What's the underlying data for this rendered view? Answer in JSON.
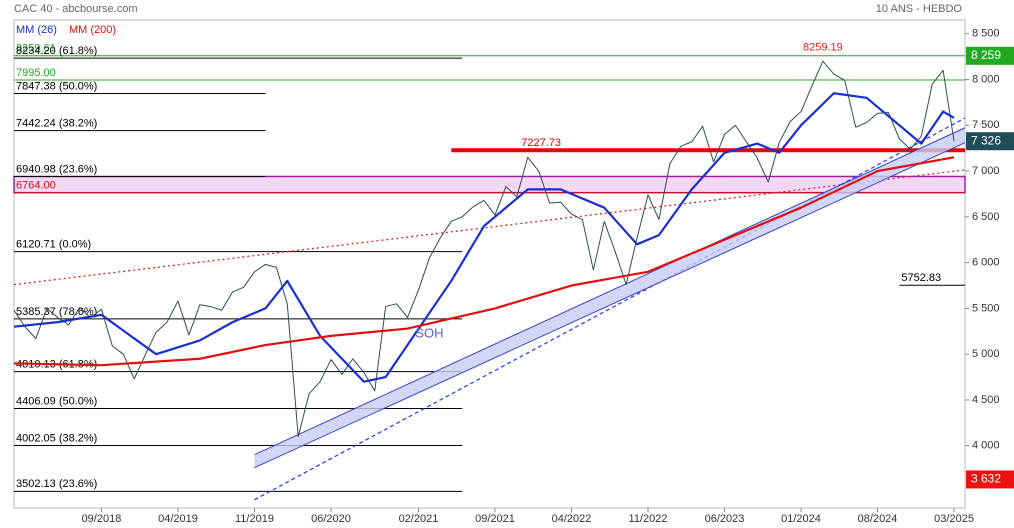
{
  "chart_data": {
    "type": "line",
    "title": "CAC 40 - abcbourse.com",
    "subtitle": "10 ANS - HEBDO",
    "xlim": [
      "2018-01",
      "2025-04"
    ],
    "xticks": [
      {
        "value": "2018-09",
        "label": "09/2018"
      },
      {
        "value": "2019-04",
        "label": "04/2019"
      },
      {
        "value": "2019-11",
        "label": "11/2019"
      },
      {
        "value": "2020-06",
        "label": "06/2020"
      },
      {
        "value": "2021-02",
        "label": "02/2021"
      },
      {
        "value": "2021-09",
        "label": "09/2021"
      },
      {
        "value": "2022-04",
        "label": "04/2022"
      },
      {
        "value": "2022-11",
        "label": "11/2022"
      },
      {
        "value": "2023-06",
        "label": "06/2023"
      },
      {
        "value": "2024-01",
        "label": "01/2024"
      },
      {
        "value": "2024-08",
        "label": "08/2024"
      },
      {
        "value": "2025-03",
        "label": "03/2025"
      }
    ],
    "ylim": [
      3320,
      8650
    ],
    "yticks": [
      {
        "value": 4000,
        "label": "4 000"
      },
      {
        "value": 4500,
        "label": "4 500"
      },
      {
        "value": 5000,
        "label": "5 000"
      },
      {
        "value": 5500,
        "label": "5 500"
      },
      {
        "value": 6000,
        "label": "6 000"
      },
      {
        "value": 6500,
        "label": "6 500"
      },
      {
        "value": 7000,
        "label": "7 000"
      },
      {
        "value": 7500,
        "label": "7 500"
      },
      {
        "value": 8000,
        "label": "8 000"
      },
      {
        "value": 8500,
        "label": "8 500"
      }
    ],
    "series": [
      {
        "color": "#2f4f4f",
        "x": [
          "2018-01",
          "2018-02",
          "2018-03",
          "2018-04",
          "2018-05",
          "2018-06",
          "2018-07",
          "2018-08",
          "2018-09",
          "2018-10",
          "2018-11",
          "2018-12",
          "2019-01",
          "2019-02",
          "2019-03",
          "2019-04",
          "2019-05",
          "2019-06",
          "2019-07",
          "2019-08",
          "2019-09",
          "2019-10",
          "2019-11",
          "2019-12",
          "2020-01",
          "2020-02",
          "2020-03",
          "2020-04",
          "2020-05",
          "2020-06",
          "2020-07",
          "2020-08",
          "2020-09",
          "2020-10",
          "2020-11",
          "2020-12",
          "2021-01",
          "2021-02",
          "2021-03",
          "2021-04",
          "2021-05",
          "2021-06",
          "2021-07",
          "2021-08",
          "2021-09",
          "2021-10",
          "2021-11",
          "2021-12",
          "2022-01",
          "2022-02",
          "2022-03",
          "2022-04",
          "2022-05",
          "2022-06",
          "2022-07",
          "2022-08",
          "2022-09",
          "2022-10",
          "2022-11",
          "2022-12",
          "2023-01",
          "2023-02",
          "2023-03",
          "2023-04",
          "2023-05",
          "2023-06",
          "2023-07",
          "2023-08",
          "2023-09",
          "2023-10",
          "2023-11",
          "2023-12",
          "2024-01",
          "2024-02",
          "2024-03",
          "2024-04",
          "2024-05",
          "2024-06",
          "2024-07",
          "2024-08",
          "2024-09",
          "2024-10",
          "2024-11",
          "2024-12",
          "2025-01",
          "2025-02",
          "2025-03"
        ],
        "values": [
          5480,
          5300,
          5170,
          5500,
          5400,
          5320,
          5510,
          5400,
          5490,
          5090,
          5000,
          4730,
          4990,
          5240,
          5350,
          5580,
          5210,
          5540,
          5520,
          5480,
          5680,
          5730,
          5900,
          5980,
          5950,
          5550,
          4100,
          4570,
          4700,
          4940,
          4780,
          4950,
          4800,
          4600,
          5520,
          5550,
          5400,
          5700,
          6050,
          6270,
          6450,
          6500,
          6610,
          6680,
          6520,
          6830,
          6720,
          7150,
          7000,
          6650,
          6660,
          6530,
          6470,
          5920,
          6450,
          6120,
          5760,
          6270,
          6740,
          6470,
          7080,
          7270,
          7320,
          7490,
          7100,
          7400,
          7500,
          7320,
          7140,
          6880,
          7310,
          7540,
          7650,
          7930,
          8200,
          8060,
          7990,
          7480,
          7530,
          7630,
          7640,
          7350,
          7240,
          7380,
          7950,
          8100,
          7326
        ]
      },
      {
        "name": "MM (26)",
        "color": "#1a2fd0",
        "x": [
          "2018-01",
          "2018-05",
          "2018-09",
          "2019-02",
          "2019-06",
          "2019-09",
          "2019-12",
          "2020-02",
          "2020-05",
          "2020-09",
          "2020-11",
          "2021-01",
          "2021-05",
          "2021-08",
          "2021-12",
          "2022-03",
          "2022-07",
          "2022-10",
          "2022-12",
          "2023-03",
          "2023-06",
          "2023-09",
          "2023-11",
          "2024-01",
          "2024-04",
          "2024-07",
          "2024-10",
          "2024-12",
          "2025-02",
          "2025-03"
        ],
        "values": [
          5300,
          5350,
          5430,
          5000,
          5150,
          5350,
          5500,
          5800,
          5200,
          4700,
          4750,
          5100,
          5800,
          6400,
          6800,
          6800,
          6600,
          6200,
          6300,
          6800,
          7200,
          7300,
          7200,
          7500,
          7850,
          7800,
          7500,
          7300,
          7650,
          7580
        ]
      },
      {
        "name": "MM (200)",
        "color": "#e01010",
        "x": [
          "2018-01",
          "2018-09",
          "2019-06",
          "2019-12",
          "2020-06",
          "2021-01",
          "2021-09",
          "2022-04",
          "2022-11",
          "2023-06",
          "2024-01",
          "2024-08",
          "2025-03"
        ],
        "values": [
          4900,
          4880,
          4950,
          5100,
          5200,
          5280,
          5500,
          5750,
          5900,
          6250,
          6600,
          7000,
          7150
        ]
      }
    ],
    "band": {
      "from": 6764,
      "to": 6940.98,
      "color": "#f3d8f3"
    },
    "levels": [
      {
        "value": 8259.61,
        "label": "8259.61",
        "color": "#22aa22",
        "from": "2018-01",
        "to": "2025-04"
      },
      {
        "value": 8234.2,
        "label": "8234.20 (61.8%)",
        "color": "#000000",
        "from": "2018-01",
        "to": "2021-06"
      },
      {
        "value": 7995,
        "label": "7995.00",
        "color": "#22aa22",
        "from": "2018-01",
        "to": "2025-04"
      },
      {
        "value": 7847.38,
        "label": "7847.38 (50.0%)",
        "color": "#000000",
        "from": "2018-01",
        "to": "2019-12"
      },
      {
        "value": 7442.24,
        "label": "7442.24 (38.2%)",
        "color": "#000000",
        "from": "2018-01",
        "to": "2019-12"
      },
      {
        "value": 7227.73,
        "label": "7227.73",
        "color": "#ee0000",
        "from": "2021-05",
        "to": "2025-04"
      },
      {
        "value": 6940.98,
        "label": "6940.98 (23.6%)",
        "color": "#000000",
        "from": "2018-01",
        "to": "2019-12"
      },
      {
        "value": 6764,
        "label": "6764.00",
        "color": "#cc1111",
        "from": "2018-01",
        "to": "2025-04"
      },
      {
        "value": 6120.71,
        "label": "6120.71 (0.0%)",
        "color": "#000000",
        "from": "2018-01",
        "to": "2021-06"
      },
      {
        "value": 5752.83,
        "label": "5752.83",
        "color": "#000000",
        "from": "2024-10",
        "to": "2025-04"
      },
      {
        "value": 5385.37,
        "label": "5385.37 (78.6%)",
        "color": "#000000",
        "from": "2018-01",
        "to": "2021-06"
      },
      {
        "value": 4810.13,
        "label": "4810.13 (61.8%)",
        "color": "#000000",
        "from": "2018-01",
        "to": "2021-06"
      },
      {
        "value": 4406.09,
        "label": "4406.09 (50.0%)",
        "color": "#000000",
        "from": "2018-01",
        "to": "2021-06"
      },
      {
        "value": 4002.05,
        "label": "4002.05 (38.2%)",
        "color": "#000000",
        "from": "2018-01",
        "to": "2021-06"
      },
      {
        "value": 3502.13,
        "label": "3502.13 (23.6%)",
        "color": "#000000",
        "from": "2018-01",
        "to": "2021-06"
      }
    ],
    "trendlines": [
      {
        "x": [
          "2018-01",
          "2025-04"
        ],
        "values": [
          5760,
          7013
        ],
        "color": "#dd2222",
        "dash": "2,3"
      },
      {
        "x": [
          "2019-11",
          "2025-04"
        ],
        "values": [
          3410,
          7580
        ],
        "color": "#3344dd",
        "dash": "4,3"
      }
    ],
    "channel": {
      "x": [
        "2019-11",
        "2025-04"
      ],
      "upper": [
        3902,
        7473
      ],
      "lower": [
        3760,
        7310
      ],
      "color": "#3344cc",
      "fill": "#c8cdf5"
    },
    "annotations": [
      {
        "text": "8259.19",
        "x": "2024-03",
        "value": 8259.19,
        "color": "#e02020"
      },
      {
        "text": "SOH",
        "x": "2021-03",
        "value": 5130,
        "color": "#5560dd"
      }
    ],
    "badges": [
      {
        "value": 8259,
        "label": "8 259",
        "color": "#22aa22"
      },
      {
        "value": 7326,
        "label": "7 326",
        "color": "#1f4e5a"
      },
      {
        "value": 3632,
        "label": "3 632",
        "color": "#ee1111"
      }
    ]
  }
}
